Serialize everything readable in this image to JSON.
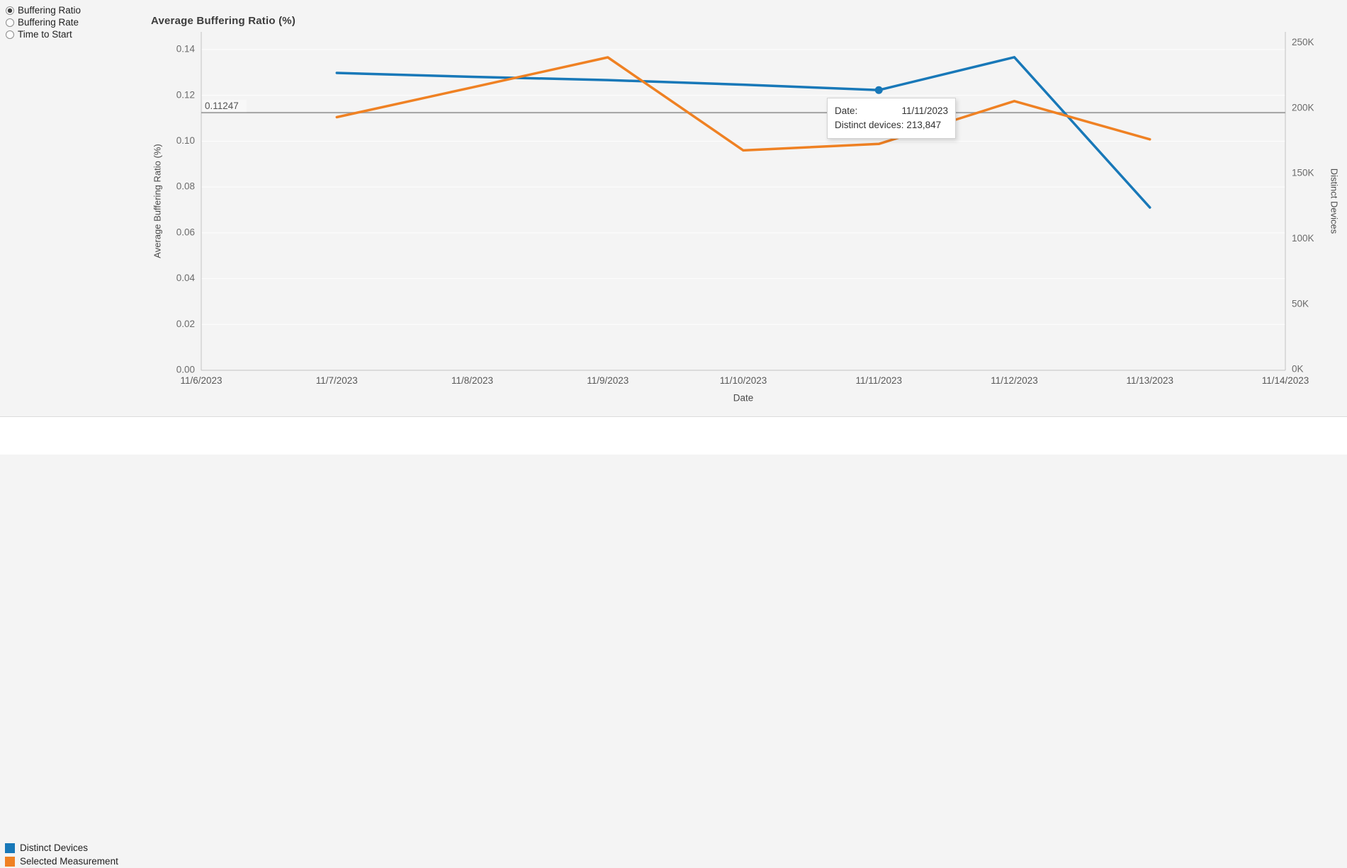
{
  "sidebar": {
    "options": [
      {
        "label": "Buffering Ratio",
        "selected": true
      },
      {
        "label": "Buffering Rate",
        "selected": false
      },
      {
        "label": "Time to Start",
        "selected": false
      }
    ]
  },
  "chart_data": {
    "type": "line",
    "title": "Average Buffering Ratio (%)",
    "xlabel": "Date",
    "grid": true,
    "legend_position": "bottom-left",
    "categories": [
      "11/6/2023",
      "11/7/2023",
      "11/8/2023",
      "11/9/2023",
      "11/10/2023",
      "11/11/2023",
      "11/12/2023",
      "11/13/2023",
      "11/14/2023"
    ],
    "left_axis": {
      "label": "Average Buffering Ratio (%)",
      "min": 0,
      "max": 0.14,
      "tick_values": [
        0,
        0.02,
        0.04,
        0.06,
        0.08,
        0.1,
        0.12,
        0.14
      ],
      "tick_labels": [
        "0.00",
        "0.02",
        "0.04",
        "0.06",
        "0.08",
        "0.10",
        "0.12",
        "0.14"
      ]
    },
    "right_axis": {
      "label": "Distinct Devices",
      "min": 0,
      "max": 250000,
      "tick_values": [
        0,
        50000,
        100000,
        150000,
        200000,
        250000
      ],
      "tick_labels": [
        "0K",
        "50K",
        "100K",
        "150K",
        "200K",
        "250K"
      ]
    },
    "reference_line": {
      "value": 0.11247,
      "label": "0.11247",
      "color": "#a3a3a3"
    },
    "series": [
      {
        "name": "Distinct Devices",
        "axis": "right",
        "color": "#1878b8",
        "x": [
          "11/7/2023",
          "11/8/2023",
          "11/9/2023",
          "11/10/2023",
          "11/11/2023",
          "11/12/2023",
          "11/13/2023"
        ],
        "values": [
          227000,
          224000,
          221500,
          218000,
          213847,
          239000,
          124000
        ]
      },
      {
        "name": "Selected Measurement",
        "axis": "left",
        "color": "#ef8123",
        "x": [
          "11/7/2023",
          "11/8/2023",
          "11/9/2023",
          "11/10/2023",
          "11/11/2023",
          "11/12/2023",
          "11/13/2023"
        ],
        "values": [
          0.1105,
          0.1235,
          0.1366,
          0.096,
          0.0988,
          0.1175,
          0.1008
        ]
      }
    ],
    "highlight": {
      "series": "Distinct Devices",
      "category": "11/11/2023",
      "value": 213847
    }
  },
  "tooltip": {
    "date_label": "Date:",
    "date_value": "11/11/2023",
    "metric_label": "Distinct devices:",
    "metric_value": "213,847"
  },
  "legend": [
    {
      "label": "Distinct Devices",
      "color": "#1878b8"
    },
    {
      "label": "Selected Measurement",
      "color": "#ef8123"
    }
  ]
}
